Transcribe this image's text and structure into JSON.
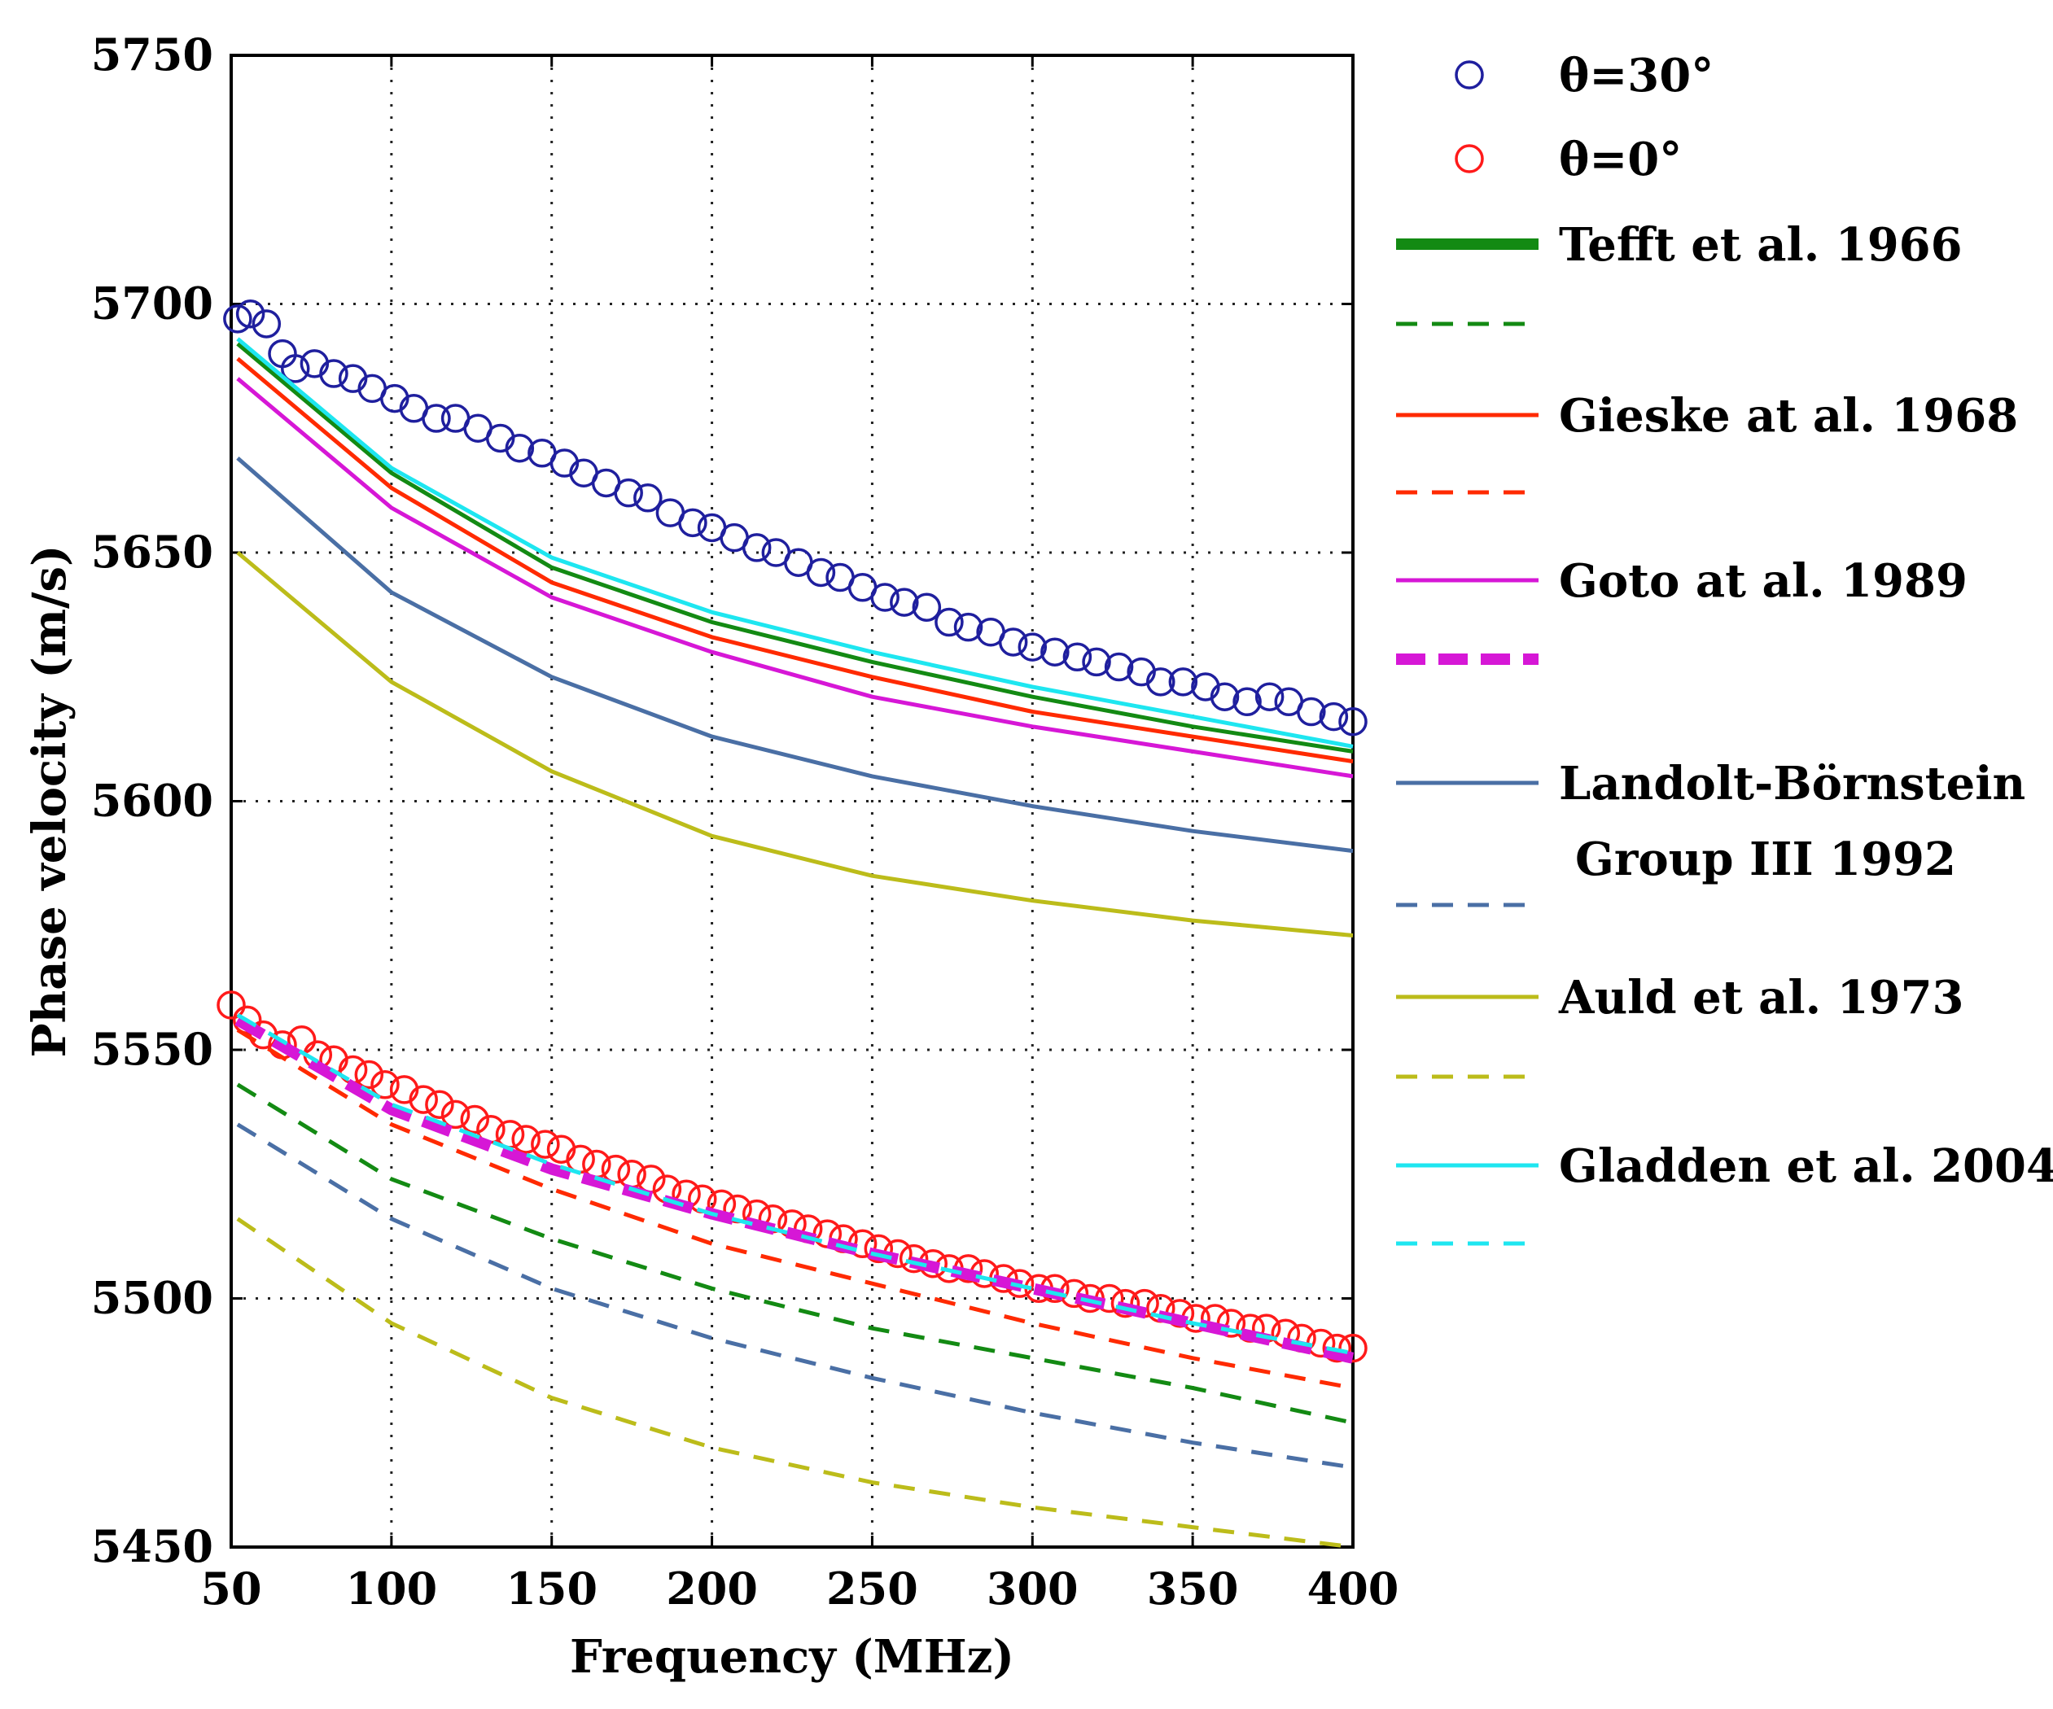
{
  "chart_data": {
    "type": "line",
    "title": "",
    "xlabel": "Frequency  (MHz)",
    "ylabel": "Phase velocity   (m/s)",
    "xlim": [
      50,
      400
    ],
    "ylim": [
      5450,
      5750
    ],
    "xticks": [
      50,
      100,
      150,
      200,
      250,
      300,
      350,
      400
    ],
    "yticks": [
      5450,
      5500,
      5550,
      5600,
      5650,
      5700,
      5750
    ],
    "grid": true,
    "legend_position": "right",
    "series": [
      {
        "name": "θ=30°",
        "kind": "markers",
        "color": "#1f1f9e",
        "x": [
          52,
          56,
          61,
          66,
          70,
          76,
          82,
          88,
          94,
          101,
          107,
          114,
          120,
          127,
          134,
          140,
          147,
          154,
          160,
          167,
          174,
          180,
          187,
          194,
          200,
          207,
          214,
          220,
          227,
          234,
          240,
          247,
          254,
          260,
          267,
          274,
          280,
          287,
          294,
          300,
          307,
          314,
          320,
          327,
          334,
          340,
          347,
          354,
          360,
          367,
          374,
          380,
          387,
          394,
          400
        ],
        "y": [
          5697,
          5698,
          5696,
          5690,
          5687,
          5688,
          5686,
          5685,
          5683,
          5681,
          5679,
          5677,
          5677,
          5675,
          5673,
          5671,
          5670,
          5668,
          5666,
          5664,
          5662,
          5661,
          5658,
          5656,
          5655,
          5653,
          5651,
          5650,
          5648,
          5646,
          5645,
          5643,
          5641,
          5640,
          5639,
          5636,
          5635,
          5634,
          5632,
          5631,
          5630,
          5629,
          5628,
          5627,
          5626,
          5624,
          5624,
          5623,
          5621,
          5620,
          5621,
          5620,
          5618,
          5617,
          5616
        ]
      },
      {
        "name": "θ=0°",
        "kind": "markers",
        "color": "#ff1a1a",
        "x": [
          50,
          55,
          60,
          66,
          72,
          77,
          82,
          88,
          93,
          98,
          104,
          110,
          115,
          120,
          126,
          131,
          137,
          142,
          148,
          153,
          159,
          164,
          170,
          175,
          181,
          186,
          192,
          197,
          203,
          208,
          214,
          219,
          225,
          230,
          236,
          241,
          247,
          252,
          258,
          263,
          269,
          274,
          280,
          285,
          291,
          296,
          302,
          307,
          313,
          318,
          324,
          329,
          335,
          340,
          346,
          351,
          357,
          362,
          368,
          373,
          379,
          384,
          390,
          395,
          400
        ],
        "y": [
          5559,
          5556,
          5553,
          5551,
          5552,
          5549,
          5548,
          5546,
          5545,
          5543,
          5542,
          5540,
          5539,
          5537,
          5536,
          5534,
          5533,
          5532,
          5531,
          5530,
          5528,
          5527,
          5526,
          5525,
          5524,
          5522,
          5521,
          5520,
          5519,
          5518,
          5517,
          5516,
          5515,
          5514,
          5513,
          5512,
          5511,
          5510,
          5509,
          5508,
          5507,
          5506,
          5506,
          5505,
          5504,
          5503,
          5502,
          5502,
          5501,
          5500,
          5500,
          5499,
          5499,
          5498,
          5497,
          5496,
          5496,
          5495,
          5494,
          5494,
          5493,
          5492,
          5491,
          5490,
          5490
        ]
      },
      {
        "name": "Tefft et al. 1966",
        "kind": "solid",
        "color": "#138a13",
        "x": [
          52,
          100,
          150,
          200,
          250,
          300,
          350,
          400
        ],
        "y": [
          5692,
          5666,
          5647,
          5636,
          5628,
          5621,
          5615,
          5610
        ]
      },
      {
        "name": "",
        "kind": "dashed",
        "color": "#138a13",
        "x": [
          52,
          100,
          150,
          200,
          250,
          300,
          350,
          400
        ],
        "y": [
          5543,
          5524,
          5512,
          5502,
          5494,
          5488,
          5482,
          5475
        ]
      },
      {
        "name": "Gieske at al. 1968",
        "kind": "solid",
        "color": "#ff2a00",
        "x": [
          52,
          100,
          150,
          200,
          250,
          300,
          350,
          400
        ],
        "y": [
          5689,
          5663,
          5644,
          5633,
          5625,
          5618,
          5613,
          5608
        ]
      },
      {
        "name": "",
        "kind": "dashed",
        "color": "#ff2a00",
        "x": [
          52,
          100,
          150,
          200,
          250,
          300,
          350,
          400
        ],
        "y": [
          5554,
          5535,
          5522,
          5511,
          5503,
          5495,
          5488,
          5482
        ]
      },
      {
        "name": "Goto at al. 1989",
        "kind": "solid",
        "color": "#d617d6",
        "x": [
          52,
          100,
          150,
          200,
          250,
          300,
          350,
          400
        ],
        "y": [
          5685,
          5659,
          5641,
          5630,
          5621,
          5615,
          5610,
          5605
        ]
      },
      {
        "name": "",
        "kind": "dashed-thick",
        "color": "#d617d6",
        "x": [
          52,
          100,
          150,
          200,
          250,
          300,
          350,
          400
        ],
        "y": [
          5556,
          5538,
          5526,
          5517,
          5509,
          5502,
          5495,
          5488
        ]
      },
      {
        "name": "Landolt-Börnstein",
        "name_line2": "Group III 1992",
        "kind": "solid",
        "color": "#4a6fa5",
        "x": [
          52,
          100,
          150,
          200,
          250,
          300,
          350,
          400
        ],
        "y": [
          5669,
          5642,
          5625,
          5613,
          5605,
          5599,
          5594,
          5590
        ]
      },
      {
        "name": "",
        "kind": "dashed",
        "color": "#4a6fa5",
        "x": [
          52,
          100,
          150,
          200,
          250,
          300,
          350,
          400
        ],
        "y": [
          5535,
          5516,
          5502,
          5492,
          5484,
          5477,
          5471,
          5466
        ]
      },
      {
        "name": "Auld et al. 1973",
        "kind": "solid",
        "color": "#bcbc1a",
        "x": [
          52,
          100,
          150,
          200,
          250,
          300,
          350,
          400
        ],
        "y": [
          5650,
          5624,
          5606,
          5593,
          5585,
          5580,
          5576,
          5573
        ]
      },
      {
        "name": "",
        "kind": "dashed",
        "color": "#bcbc1a",
        "x": [
          52,
          100,
          150,
          200,
          250,
          300,
          350,
          400
        ],
        "y": [
          5516,
          5495,
          5480,
          5470,
          5463,
          5458,
          5454,
          5450
        ]
      },
      {
        "name": "Gladden et al. 2004",
        "kind": "solid",
        "color": "#1ee6f0",
        "x": [
          52,
          100,
          150,
          200,
          250,
          300,
          350,
          400
        ],
        "y": [
          5693,
          5667,
          5649,
          5638,
          5630,
          5623,
          5617,
          5611
        ]
      },
      {
        "name": "",
        "kind": "dashed",
        "color": "#1ee6f0",
        "x": [
          52,
          100,
          150,
          200,
          250,
          300,
          350,
          400
        ],
        "y": [
          5557,
          5539,
          5527,
          5517,
          5509,
          5502,
          5495,
          5489
        ]
      }
    ]
  }
}
